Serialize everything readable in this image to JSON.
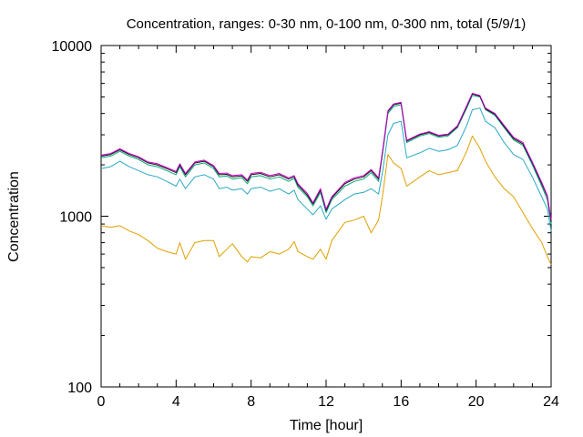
{
  "chart_data": {
    "type": "line",
    "title": "Concentration, ranges: 0-30 nm, 0-100 nm, 0-300 nm, total (5/9/1)",
    "xlabel": "Time [hour]",
    "ylabel": "Concentration",
    "xlim": [
      0,
      24
    ],
    "ylim": [
      100,
      10000
    ],
    "yscale": "log",
    "grid": false,
    "x_ticks": [
      0,
      4,
      8,
      12,
      16,
      20,
      24
    ],
    "y_ticks": [
      100,
      1000,
      10000
    ],
    "x_tick_labels": [
      "0",
      "4",
      "8",
      "12",
      "16",
      "20",
      "24"
    ],
    "y_tick_labels": [
      "100",
      "1000",
      "10000"
    ],
    "x": [
      0,
      0.5,
      1,
      1.5,
      2,
      2.5,
      3,
      3.5,
      4,
      4.2,
      4.5,
      5,
      5.5,
      6,
      6.3,
      6.7,
      7,
      7.5,
      7.8,
      8,
      8.5,
      9,
      9.5,
      10,
      10.3,
      10.5,
      11,
      11.3,
      11.7,
      12,
      12.3,
      13,
      13.5,
      14,
      14.4,
      14.8,
      15,
      15.3,
      15.6,
      16,
      16.3,
      17,
      17.5,
      18,
      18.5,
      19,
      19.5,
      19.8,
      20.2,
      20.5,
      21,
      21.5,
      22,
      22.5,
      23,
      23.5,
      23.8,
      24
    ],
    "series": [
      {
        "color": "#2aa8c4",
        "values": [
          1900,
          1950,
          2100,
          1950,
          1850,
          1750,
          1700,
          1600,
          1500,
          1650,
          1450,
          1700,
          1750,
          1650,
          1450,
          1480,
          1420,
          1450,
          1350,
          1450,
          1480,
          1400,
          1450,
          1350,
          1420,
          1250,
          1100,
          1020,
          1150,
          960,
          1100,
          1250,
          1350,
          1380,
          1450,
          1350,
          1800,
          3000,
          3500,
          3600,
          2200,
          2350,
          2500,
          2400,
          2450,
          2600,
          3400,
          4200,
          4300,
          3600,
          3300,
          2700,
          2300,
          2150,
          1700,
          1300,
          1100,
          820
        ]
      },
      {
        "color": "#00a878",
        "values": [
          2200,
          2250,
          2400,
          2250,
          2150,
          2000,
          1950,
          1850,
          1750,
          1950,
          1700,
          2000,
          2050,
          1900,
          1700,
          1720,
          1650,
          1680,
          1550,
          1700,
          1730,
          1650,
          1700,
          1600,
          1660,
          1480,
          1300,
          1150,
          1380,
          1050,
          1250,
          1500,
          1600,
          1650,
          1800,
          1600,
          2300,
          4000,
          4400,
          4500,
          2700,
          2950,
          3050,
          2900,
          2950,
          3300,
          4300,
          5100,
          5000,
          4200,
          3900,
          3300,
          2800,
          2600,
          2000,
          1500,
          1250,
          900
        ]
      },
      {
        "color": "#111111",
        "values": [
          2250,
          2300,
          2450,
          2300,
          2200,
          2050,
          2000,
          1900,
          1800,
          2000,
          1750,
          2050,
          2100,
          1950,
          1750,
          1760,
          1700,
          1720,
          1600,
          1750,
          1780,
          1700,
          1750,
          1650,
          1700,
          1520,
          1330,
          1180,
          1420,
          1080,
          1280,
          1550,
          1650,
          1700,
          1850,
          1650,
          2350,
          4100,
          4500,
          4600,
          2750,
          3000,
          3100,
          2950,
          3000,
          3350,
          4400,
          5200,
          5050,
          4250,
          3950,
          3350,
          2850,
          2650,
          2050,
          1550,
          1300,
          930
        ]
      },
      {
        "color": "#cc00cc",
        "values": [
          2280,
          2330,
          2480,
          2330,
          2230,
          2080,
          2030,
          1930,
          1830,
          2030,
          1780,
          2080,
          2130,
          1980,
          1780,
          1790,
          1730,
          1750,
          1630,
          1780,
          1810,
          1730,
          1780,
          1680,
          1730,
          1550,
          1360,
          1200,
          1450,
          1100,
          1300,
          1580,
          1680,
          1730,
          1880,
          1680,
          2380,
          4150,
          4550,
          4650,
          2780,
          3030,
          3130,
          2980,
          3030,
          3380,
          4450,
          5250,
          5100,
          4300,
          4000,
          3400,
          2900,
          2700,
          2080,
          1580,
          1320,
          950
        ]
      },
      {
        "color": "#e0a000",
        "values": [
          880,
          860,
          880,
          820,
          780,
          720,
          650,
          620,
          600,
          700,
          560,
          700,
          720,
          720,
          580,
          640,
          690,
          580,
          540,
          580,
          570,
          620,
          600,
          640,
          710,
          620,
          580,
          560,
          640,
          560,
          720,
          920,
          950,
          1000,
          800,
          950,
          1300,
          2300,
          2050,
          1900,
          1500,
          1700,
          1850,
          1750,
          1800,
          1850,
          2400,
          2950,
          2500,
          2100,
          1700,
          1450,
          1300,
          1050,
          850,
          700,
          580,
          520
        ]
      }
    ]
  }
}
